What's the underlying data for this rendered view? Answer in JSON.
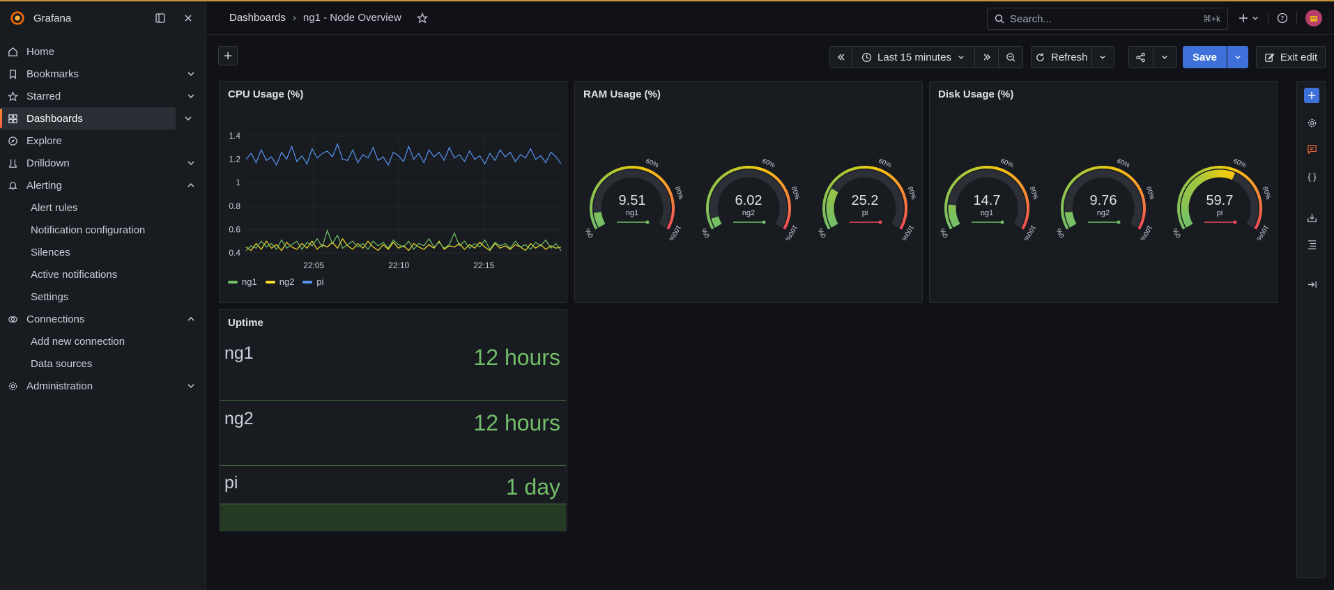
{
  "app": {
    "name": "Grafana"
  },
  "sidebar": {
    "items": [
      {
        "label": "Home",
        "icon": "home-icon",
        "chevron": ""
      },
      {
        "label": "Bookmarks",
        "icon": "bookmark-icon",
        "chevron": "down"
      },
      {
        "label": "Starred",
        "icon": "star-icon",
        "chevron": "down"
      },
      {
        "label": "Dashboards",
        "icon": "dashboards-icon",
        "chevron": "down",
        "active": true
      },
      {
        "label": "Explore",
        "icon": "compass-icon",
        "chevron": ""
      },
      {
        "label": "Drilldown",
        "icon": "drilldown-icon",
        "chevron": "down"
      },
      {
        "label": "Alerting",
        "icon": "bell-icon",
        "chevron": "up"
      }
    ],
    "alerting_sub": [
      "Alert rules",
      "Notification configuration",
      "Silences",
      "Active notifications",
      "Settings"
    ],
    "connections": {
      "label": "Connections",
      "icon": "connections-icon",
      "chevron": "up"
    },
    "connections_sub": [
      "Add new connection",
      "Data sources"
    ],
    "administration": {
      "label": "Administration",
      "icon": "gear-icon",
      "chevron": "down"
    }
  },
  "header": {
    "breadcrumb_root": "Dashboards",
    "breadcrumb_sep": "›",
    "breadcrumb_current": "ng1 - Node Overview",
    "search_placeholder": "Search...",
    "search_shortcut": "⌘+k"
  },
  "toolbar": {
    "time_range": "Last 15 minutes",
    "refresh_label": "Refresh",
    "save_label": "Save",
    "exit_label": "Exit edit"
  },
  "panels": {
    "cpu": {
      "title": "CPU Usage (%)"
    },
    "ram": {
      "title": "RAM Usage (%)"
    },
    "disk": {
      "title": "Disk Usage (%)"
    },
    "uptime": {
      "title": "Uptime",
      "rows": [
        {
          "name": "ng1",
          "value": "12 hours"
        },
        {
          "name": "ng2",
          "value": "12 hours"
        },
        {
          "name": "pi",
          "value": "1 day"
        }
      ]
    }
  },
  "gauges": {
    "ram": [
      {
        "value": "9.51",
        "label": "ng1",
        "percent": 9.51
      },
      {
        "value": "6.02",
        "label": "ng2",
        "percent": 6.02
      },
      {
        "value": "25.2",
        "label": "pi",
        "percent": 25.2
      }
    ],
    "disk": [
      {
        "value": "14.7",
        "label": "ng1",
        "percent": 14.7
      },
      {
        "value": "9.76",
        "label": "ng2",
        "percent": 9.76
      },
      {
        "value": "59.7",
        "label": "pi",
        "percent": 59.7
      }
    ],
    "tick_labels": [
      "0%",
      "60%",
      "80%",
      "100%"
    ]
  },
  "chart_data": {
    "type": "line",
    "title": "CPU Usage (%)",
    "ylim": [
      0.4,
      1.4
    ],
    "yticks": [
      "1.4",
      "1.2",
      "1",
      "0.8",
      "0.6",
      "0.4"
    ],
    "xticks": [
      "22:05",
      "22:10",
      "22:15"
    ],
    "series": [
      {
        "name": "ng1",
        "color": "#73bf69",
        "values": [
          0.42,
          0.46,
          0.44,
          0.5,
          0.45,
          0.48,
          0.43,
          0.51,
          0.44,
          0.47,
          0.5,
          0.43,
          0.49,
          0.46,
          0.52,
          0.45,
          0.59,
          0.48,
          0.55,
          0.44,
          0.47,
          0.5,
          0.45,
          0.48,
          0.43,
          0.5,
          0.46,
          0.49,
          0.44,
          0.51,
          0.47,
          0.45,
          0.5,
          0.43,
          0.48,
          0.46,
          0.52,
          0.45,
          0.49,
          0.44,
          0.47,
          0.57,
          0.46,
          0.5,
          0.44,
          0.48,
          0.45,
          0.51,
          0.43,
          0.49,
          0.46,
          0.48,
          0.44,
          0.5,
          0.45,
          0.47,
          0.43,
          0.49,
          0.46,
          0.51,
          0.44,
          0.48,
          0.42
        ]
      },
      {
        "name": "ng2",
        "color": "#fade2a",
        "values": [
          0.45,
          0.42,
          0.48,
          0.43,
          0.5,
          0.44,
          0.47,
          0.42,
          0.49,
          0.45,
          0.43,
          0.48,
          0.44,
          0.5,
          0.43,
          0.47,
          0.45,
          0.49,
          0.44,
          0.52,
          0.46,
          0.43,
          0.48,
          0.44,
          0.5,
          0.45,
          0.42,
          0.47,
          0.43,
          0.49,
          0.44,
          0.46,
          0.42,
          0.48,
          0.45,
          0.43,
          0.47,
          0.44,
          0.5,
          0.43,
          0.46,
          0.45,
          0.48,
          0.43,
          0.47,
          0.44,
          0.49,
          0.45,
          0.42,
          0.48,
          0.44,
          0.46,
          0.43,
          0.47,
          0.45,
          0.42,
          0.48,
          0.44,
          0.47,
          0.43,
          0.46,
          0.44,
          0.45
        ]
      },
      {
        "name": "pi",
        "color": "#5794f2",
        "values": [
          1.2,
          1.25,
          1.17,
          1.28,
          1.19,
          1.22,
          1.15,
          1.26,
          1.2,
          1.31,
          1.18,
          1.23,
          1.16,
          1.29,
          1.21,
          1.25,
          1.27,
          1.22,
          1.33,
          1.2,
          1.19,
          1.28,
          1.17,
          1.24,
          1.21,
          1.3,
          1.19,
          1.22,
          1.15,
          1.26,
          1.23,
          1.18,
          1.31,
          1.2,
          1.25,
          1.17,
          1.28,
          1.22,
          1.26,
          1.19,
          1.3,
          1.21,
          1.24,
          1.18,
          1.27,
          1.2,
          1.23,
          1.16,
          1.25,
          1.19,
          1.28,
          1.22,
          1.26,
          1.18,
          1.24,
          1.21,
          1.29,
          1.2,
          1.23,
          1.17,
          1.26,
          1.22,
          1.16
        ]
      }
    ]
  }
}
